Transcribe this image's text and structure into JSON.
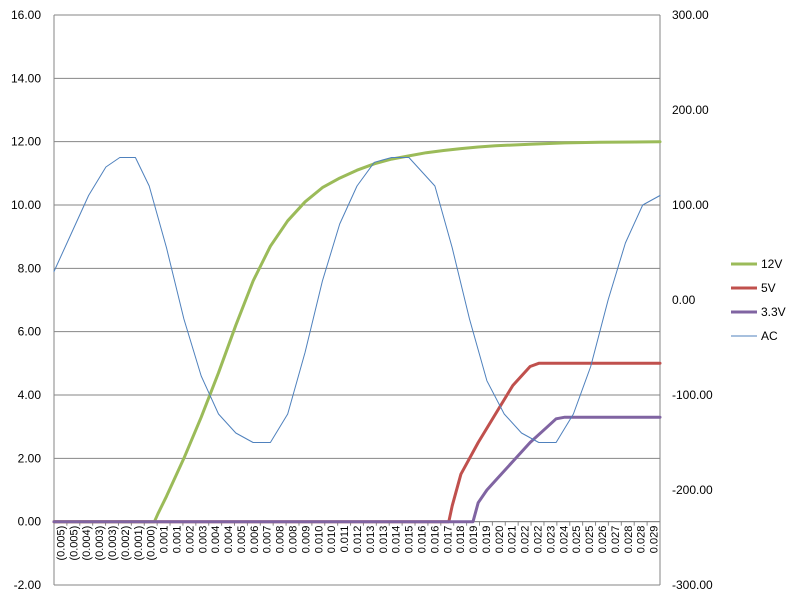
{
  "chart_data": {
    "type": "line",
    "left_axis": {
      "ylim": [
        -2,
        16
      ],
      "ticks": [
        "-2.00",
        "0.00",
        "2.00",
        "4.00",
        "6.00",
        "8.00",
        "10.00",
        "12.00",
        "14.00",
        "16.00"
      ],
      "tick_values": [
        -2,
        0,
        2,
        4,
        6,
        8,
        10,
        12,
        14,
        16
      ]
    },
    "right_axis": {
      "ylim": [
        -300,
        300
      ],
      "ticks": [
        "-300.00",
        "-200.00",
        "-100.00",
        "0.00",
        "100.00",
        "200.00",
        "300.00"
      ],
      "tick_values": [
        -300,
        -200,
        -100,
        0,
        100,
        200,
        300
      ]
    },
    "x_axis": {
      "xlim": [
        -0.0055,
        0.0295
      ],
      "categories": [
        "(0.005)",
        "(0.005)",
        "(0.004)",
        "(0.003)",
        "(0.003)",
        "(0.002)",
        "(0.001)",
        "(0.000)",
        "0.001",
        "0.001",
        "0.002",
        "0.003",
        "0.004",
        "0.004",
        "0.005",
        "0.006",
        "0.007",
        "0.008",
        "0.008",
        "0.009",
        "0.010",
        "0.010",
        "0.011",
        "0.012",
        "0.013",
        "0.013",
        "0.014",
        "0.015",
        "0.016",
        "0.016",
        "0.017",
        "0.018",
        "0.019",
        "0.019",
        "0.020",
        "0.021",
        "0.022",
        "0.022",
        "0.023",
        "0.024",
        "0.025",
        "0.025",
        "0.026",
        "0.027",
        "0.028",
        "0.028",
        "0.029"
      ]
    },
    "grid": true,
    "legend_position": "right",
    "series": [
      {
        "name": "12V",
        "axis": "left",
        "color": "#9bbb59",
        "width": 3,
        "x": [
          -0.0055,
          0.0003,
          0.0005,
          0.001,
          0.002,
          0.003,
          0.004,
          0.005,
          0.006,
          0.007,
          0.008,
          0.009,
          0.01,
          0.011,
          0.012,
          0.013,
          0.014,
          0.015,
          0.016,
          0.017,
          0.018,
          0.019,
          0.02,
          0.022,
          0.024,
          0.026,
          0.0295
        ],
        "y": [
          0.0,
          0.0,
          0.25,
          0.8,
          2.0,
          3.3,
          4.7,
          6.2,
          7.6,
          8.7,
          9.5,
          10.1,
          10.55,
          10.85,
          11.1,
          11.3,
          11.45,
          11.55,
          11.65,
          11.72,
          11.78,
          11.83,
          11.87,
          11.92,
          11.96,
          11.98,
          12.0
        ]
      },
      {
        "name": "5V",
        "axis": "left",
        "color": "#c0504d",
        "width": 3,
        "x": [
          -0.0055,
          0.0173,
          0.0175,
          0.018,
          0.019,
          0.02,
          0.021,
          0.022,
          0.0225,
          0.023,
          0.0295
        ],
        "y": [
          0.0,
          0.0,
          0.5,
          1.5,
          2.5,
          3.4,
          4.3,
          4.9,
          5.0,
          5.0,
          5.0
        ]
      },
      {
        "name": "3.3V",
        "axis": "left",
        "color": "#8064a2",
        "width": 3,
        "x": [
          -0.0055,
          0.0187,
          0.019,
          0.0195,
          0.02,
          0.021,
          0.022,
          0.023,
          0.0235,
          0.024,
          0.0295
        ],
        "y": [
          0.0,
          0.0,
          0.6,
          1.0,
          1.3,
          1.9,
          2.5,
          3.0,
          3.25,
          3.3,
          3.3
        ]
      },
      {
        "name": "AC",
        "axis": "right",
        "color": "#4f81bd",
        "width": 1,
        "x": [
          -0.0055,
          -0.0045,
          -0.0035,
          -0.0025,
          -0.0017,
          -0.0008,
          0.0,
          0.001,
          0.002,
          0.003,
          0.004,
          0.005,
          0.006,
          0.007,
          0.008,
          0.009,
          0.01,
          0.011,
          0.012,
          0.013,
          0.014,
          0.015,
          0.0165,
          0.0175,
          0.0185,
          0.0195,
          0.0205,
          0.0215,
          0.0225,
          0.0235,
          0.0245,
          0.0255,
          0.0265,
          0.0275,
          0.0285,
          0.0295
        ],
        "y": [
          30,
          70,
          110,
          140,
          150,
          150,
          120,
          55,
          -20,
          -80,
          -120,
          -140,
          -150,
          -150,
          -120,
          -55,
          20,
          80,
          120,
          145,
          150,
          150,
          120,
          55,
          -20,
          -85,
          -120,
          -140,
          -150,
          -150,
          -120,
          -70,
          0,
          60,
          100,
          110
        ]
      }
    ]
  }
}
